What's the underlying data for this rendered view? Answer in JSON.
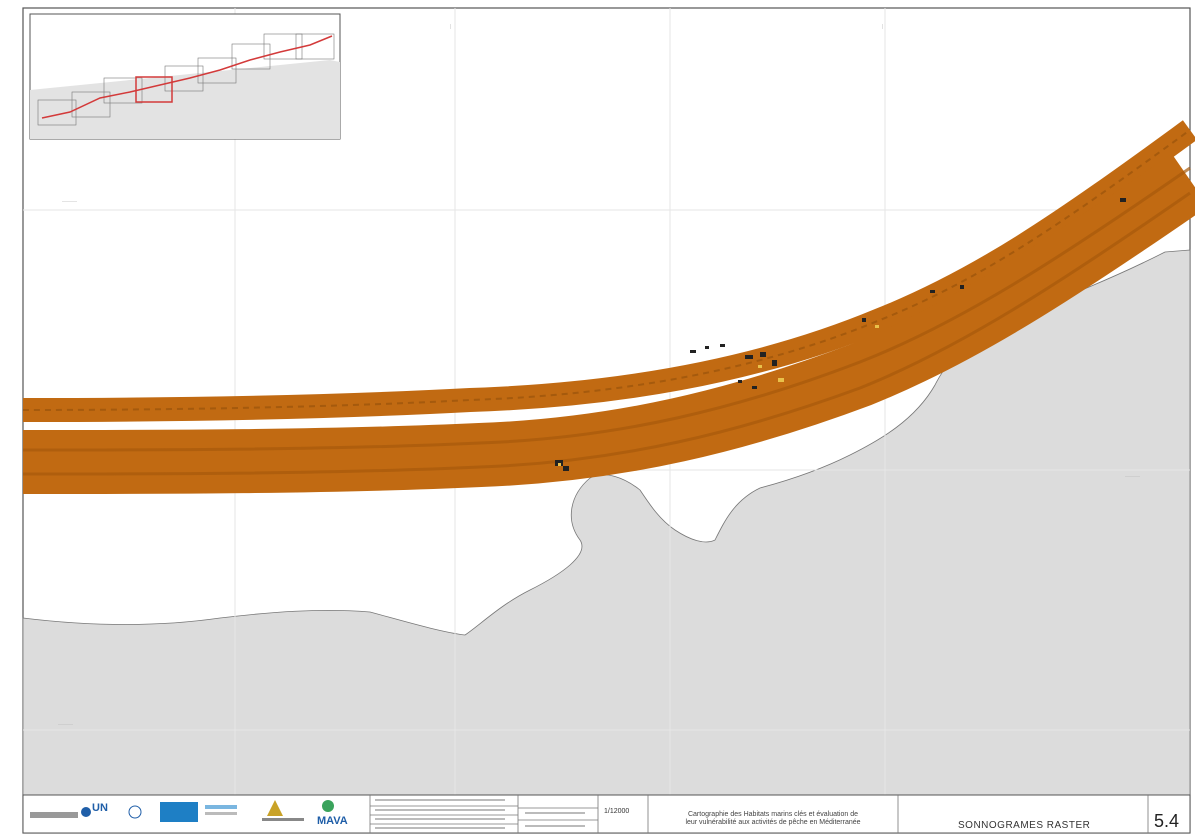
{
  "map": {
    "colors": {
      "land": "#dcdcdc",
      "sea": "#ffffff",
      "sonar": "#c16a12",
      "sonar_dark": "#8a4a08",
      "highlight": "#d4a017",
      "grid": "#e6e6e6",
      "inset_track": "#d33a3a"
    }
  },
  "title_block": {
    "project_title_line1": "Cartographie des Habitats marins clés et évaluation de",
    "project_title_line2": "leur vulnérabilité aux activités de pêche en Méditerranée",
    "scale": "1/12000",
    "plate_title": "SONNOGRAMES RASTER",
    "sheet_number": "5.4",
    "logos": {
      "un_env": "UN",
      "maya": "MAVA"
    }
  }
}
